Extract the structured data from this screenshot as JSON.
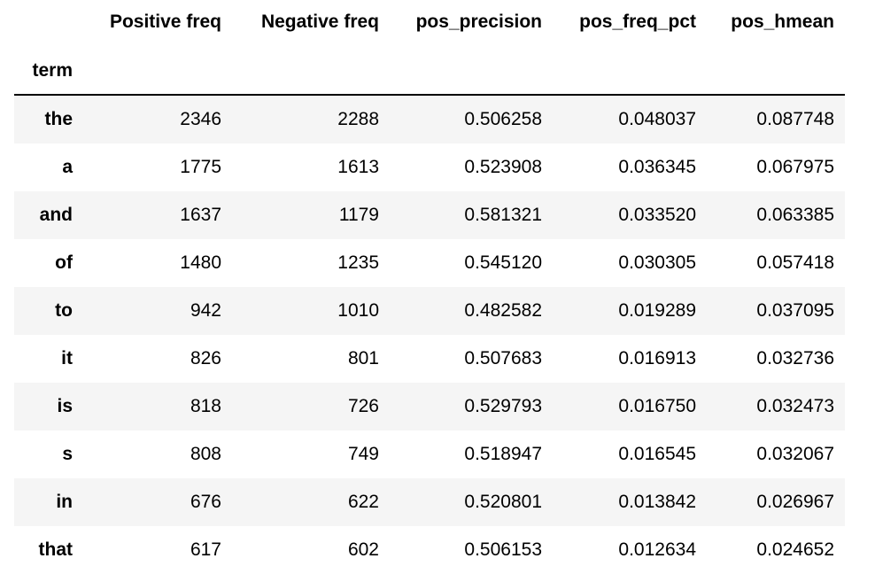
{
  "table": {
    "index_name": "term",
    "columns": [
      "Positive freq",
      "Negative freq",
      "pos_precision",
      "pos_freq_pct",
      "pos_hmean"
    ],
    "rows": [
      [
        "the",
        "2346",
        "2288",
        "0.506258",
        "0.048037",
        "0.087748"
      ],
      [
        "a",
        "1775",
        "1613",
        "0.523908",
        "0.036345",
        "0.067975"
      ],
      [
        "and",
        "1637",
        "1179",
        "0.581321",
        "0.033520",
        "0.063385"
      ],
      [
        "of",
        "1480",
        "1235",
        "0.545120",
        "0.030305",
        "0.057418"
      ],
      [
        "to",
        "942",
        "1010",
        "0.482582",
        "0.019289",
        "0.037095"
      ],
      [
        "it",
        "826",
        "801",
        "0.507683",
        "0.016913",
        "0.032736"
      ],
      [
        "is",
        "818",
        "726",
        "0.529793",
        "0.016750",
        "0.032473"
      ],
      [
        "s",
        "808",
        "749",
        "0.518947",
        "0.016545",
        "0.032067"
      ],
      [
        "in",
        "676",
        "622",
        "0.520801",
        "0.013842",
        "0.026967"
      ],
      [
        "that",
        "617",
        "602",
        "0.506153",
        "0.012634",
        "0.024652"
      ]
    ]
  }
}
